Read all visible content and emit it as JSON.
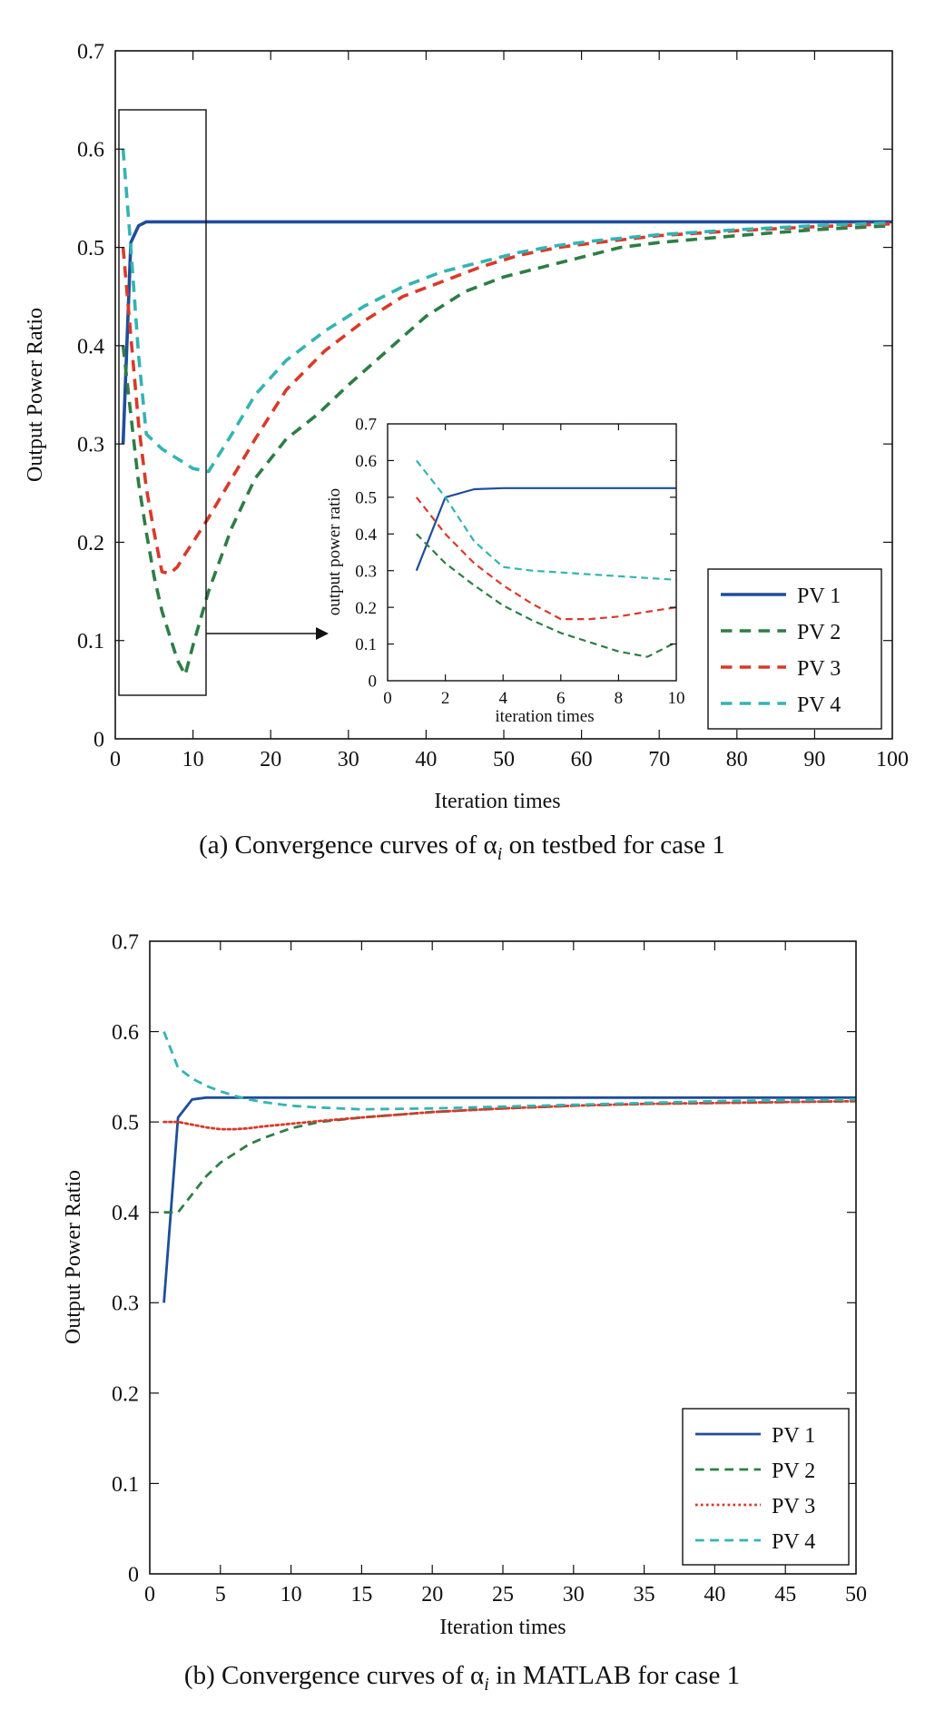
{
  "chart_data": [
    {
      "panel": "a",
      "type": "line",
      "caption": "(a) Convergence curves of α",
      "caption_sub": "i",
      "caption_rest": " on testbed for case 1",
      "xlabel": "Iteration times",
      "ylabel": "Output Power Ratio",
      "xlim": [
        0,
        100
      ],
      "ylim": [
        0,
        0.7
      ],
      "xticks": [
        0,
        10,
        20,
        30,
        40,
        50,
        60,
        70,
        80,
        90,
        100
      ],
      "yticks": [
        0,
        0.1,
        0.2,
        0.3,
        0.4,
        0.5,
        0.6,
        0.7
      ],
      "legend_position": "bottom-right",
      "grid": false,
      "series": [
        {
          "name": "PV 1",
          "color": "#1f4e9a",
          "dash": "solid",
          "x": [
            1,
            2,
            3,
            4,
            5,
            10,
            20,
            40,
            60,
            80,
            100
          ],
          "y": [
            0.3,
            0.505,
            0.522,
            0.526,
            0.526,
            0.526,
            0.526,
            0.526,
            0.526,
            0.526,
            0.526
          ]
        },
        {
          "name": "PV 2",
          "color": "#2e7d46",
          "dash": "dashed",
          "x": [
            1,
            2,
            3,
            4,
            5,
            6,
            7,
            8,
            9,
            10,
            12,
            15,
            18,
            22,
            26,
            30,
            35,
            40,
            45,
            50,
            55,
            60,
            65,
            70,
            80,
            90,
            100
          ],
          "y": [
            0.4,
            0.33,
            0.26,
            0.21,
            0.165,
            0.13,
            0.105,
            0.08,
            0.065,
            0.095,
            0.15,
            0.215,
            0.265,
            0.305,
            0.33,
            0.36,
            0.395,
            0.43,
            0.455,
            0.47,
            0.48,
            0.49,
            0.5,
            0.505,
            0.512,
            0.518,
            0.522
          ]
        },
        {
          "name": "PV 3",
          "color": "#d83a2a",
          "dash": "dashed",
          "x": [
            1,
            2,
            3,
            4,
            5,
            6,
            7,
            8,
            9,
            10,
            12,
            15,
            18,
            22,
            27,
            32,
            37,
            42,
            47,
            52,
            57,
            62,
            70,
            80,
            90,
            100
          ],
          "y": [
            0.5,
            0.41,
            0.32,
            0.255,
            0.21,
            0.17,
            0.168,
            0.175,
            0.188,
            0.2,
            0.225,
            0.265,
            0.305,
            0.355,
            0.395,
            0.425,
            0.45,
            0.465,
            0.48,
            0.492,
            0.5,
            0.505,
            0.512,
            0.517,
            0.521,
            0.524
          ]
        },
        {
          "name": "PV 4",
          "color": "#35b3b3",
          "dash": "dashed",
          "x": [
            1,
            2,
            3,
            4,
            6,
            8,
            10,
            12,
            15,
            18,
            22,
            27,
            32,
            37,
            42,
            47,
            52,
            57,
            62,
            70,
            80,
            90,
            100
          ],
          "y": [
            0.6,
            0.5,
            0.39,
            0.31,
            0.295,
            0.285,
            0.275,
            0.272,
            0.31,
            0.35,
            0.385,
            0.415,
            0.44,
            0.46,
            0.475,
            0.485,
            0.495,
            0.502,
            0.507,
            0.513,
            0.518,
            0.522,
            0.525
          ]
        }
      ],
      "inset": {
        "xlabel": "iteration times",
        "ylabel": "output power ratio",
        "xlim": [
          0,
          10
        ],
        "ylim": [
          0,
          0.7
        ],
        "xticks": [
          0,
          2,
          4,
          6,
          8,
          10
        ],
        "yticks": [
          0,
          0.1,
          0.2,
          0.3,
          0.4,
          0.5,
          0.6,
          0.7
        ],
        "series": [
          {
            "color": "#1f4e9a",
            "dash": "solid",
            "x": [
              1,
              2,
              3,
              4,
              5,
              6,
              7,
              8,
              9,
              10
            ],
            "y": [
              0.3,
              0.5,
              0.522,
              0.525,
              0.525,
              0.525,
              0.525,
              0.525,
              0.525,
              0.525
            ]
          },
          {
            "color": "#2e7d46",
            "dash": "dashed",
            "x": [
              1,
              2,
              3,
              4,
              5,
              6,
              7,
              8,
              9,
              10
            ],
            "y": [
              0.4,
              0.32,
              0.26,
              0.205,
              0.165,
              0.13,
              0.105,
              0.08,
              0.065,
              0.105
            ]
          },
          {
            "color": "#d83a2a",
            "dash": "dashed",
            "x": [
              1,
              2,
              3,
              4,
              5,
              6,
              7,
              8,
              9,
              10
            ],
            "y": [
              0.5,
              0.4,
              0.32,
              0.26,
              0.21,
              0.168,
              0.168,
              0.175,
              0.188,
              0.2
            ]
          },
          {
            "color": "#35b3b3",
            "dash": "dashed",
            "x": [
              1,
              2,
              3,
              4,
              5,
              6,
              7,
              8,
              9,
              10
            ],
            "y": [
              0.6,
              0.5,
              0.38,
              0.31,
              0.3,
              0.295,
              0.29,
              0.285,
              0.28,
              0.275
            ]
          }
        ]
      }
    },
    {
      "panel": "b",
      "type": "line",
      "caption": "(b) Convergence curves of α",
      "caption_sub": "i",
      "caption_rest": " in MATLAB for case 1",
      "xlabel": "Iteration times",
      "ylabel": "Output Power Ratio",
      "xlim": [
        0,
        50
      ],
      "ylim": [
        0,
        0.7
      ],
      "xticks": [
        0,
        5,
        10,
        15,
        20,
        25,
        30,
        35,
        40,
        45,
        50
      ],
      "yticks": [
        0,
        0.1,
        0.2,
        0.3,
        0.4,
        0.5,
        0.6,
        0.7
      ],
      "legend_position": "bottom-right",
      "grid": false,
      "series": [
        {
          "name": "PV 1",
          "color": "#1f4e9a",
          "dash": "solid",
          "x": [
            1,
            2,
            3,
            4,
            5,
            6,
            8,
            10,
            20,
            30,
            40,
            50
          ],
          "y": [
            0.3,
            0.505,
            0.525,
            0.527,
            0.527,
            0.527,
            0.527,
            0.527,
            0.527,
            0.527,
            0.527,
            0.527
          ]
        },
        {
          "name": "PV 2",
          "color": "#2e7d46",
          "dash": "dashed",
          "x": [
            1,
            2,
            3,
            4,
            5,
            6,
            7,
            8,
            10,
            12,
            15,
            20,
            25,
            30,
            35,
            40,
            45,
            50
          ],
          "y": [
            0.4,
            0.4,
            0.42,
            0.44,
            0.455,
            0.465,
            0.475,
            0.482,
            0.493,
            0.5,
            0.505,
            0.511,
            0.515,
            0.518,
            0.52,
            0.521,
            0.522,
            0.523
          ]
        },
        {
          "name": "PV 3",
          "color": "#d83a2a",
          "dash": "dotted",
          "x": [
            1,
            2,
            3,
            4,
            5,
            6,
            7,
            8,
            10,
            12,
            15,
            20,
            25,
            30,
            35,
            40,
            45,
            50
          ],
          "y": [
            0.5,
            0.5,
            0.497,
            0.494,
            0.492,
            0.492,
            0.493,
            0.495,
            0.498,
            0.501,
            0.505,
            0.511,
            0.515,
            0.518,
            0.52,
            0.521,
            0.522,
            0.523
          ]
        },
        {
          "name": "PV 4",
          "color": "#35b3b3",
          "dash": "dashed",
          "x": [
            1,
            2,
            3,
            4,
            5,
            6,
            7,
            8,
            10,
            12,
            15,
            20,
            25,
            30,
            35,
            40,
            45,
            50
          ],
          "y": [
            0.6,
            0.56,
            0.548,
            0.54,
            0.534,
            0.529,
            0.525,
            0.522,
            0.518,
            0.516,
            0.514,
            0.515,
            0.517,
            0.519,
            0.521,
            0.523,
            0.524,
            0.525
          ]
        }
      ]
    }
  ]
}
